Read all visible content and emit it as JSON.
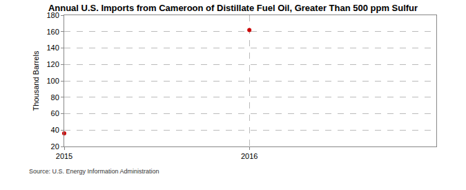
{
  "chart_data": {
    "type": "scatter",
    "title": "Annual U.S. Imports from Cameroon of Distillate Fuel Oil, Greater Than 500 ppm Sulfur",
    "y_label": "Thousand Barrels",
    "x": [
      2015,
      2016
    ],
    "values": [
      36,
      162
    ],
    "color": "#cc0000",
    "marker": "circle",
    "xlim": [
      2015,
      2017.01
    ],
    "xticks": [
      2015,
      2016
    ],
    "ylim": [
      20,
      180
    ],
    "yticks": [
      20,
      40,
      60,
      80,
      100,
      120,
      140,
      160,
      180
    ],
    "grid": true,
    "annotations": [
      "Source: U.S. Energy Information Administration"
    ]
  }
}
